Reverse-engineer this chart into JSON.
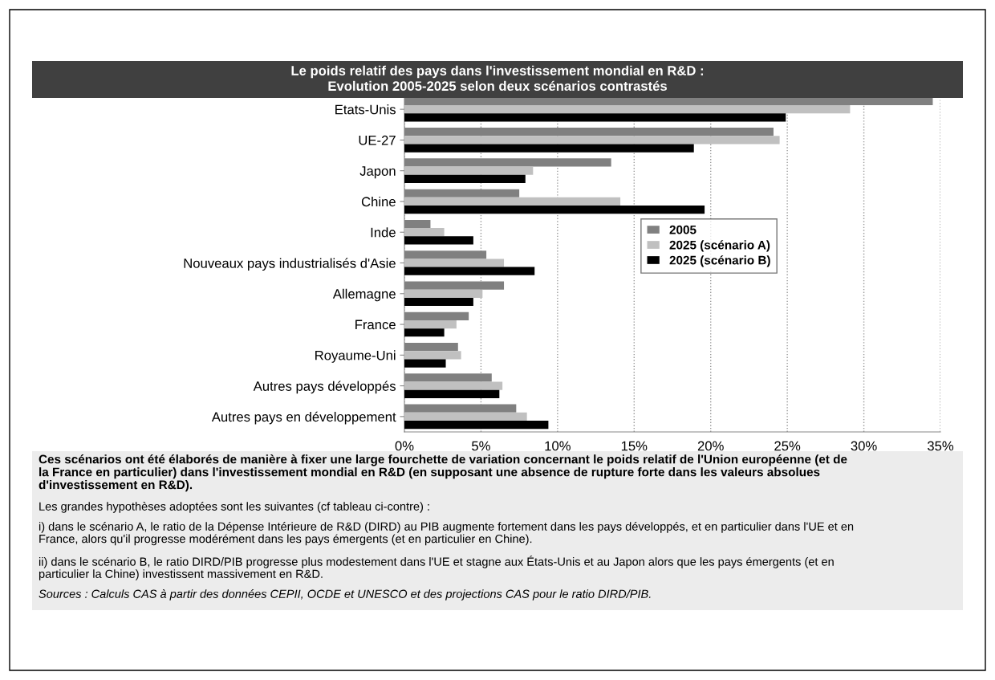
{
  "chart_data": {
    "type": "bar",
    "orientation": "horizontal",
    "title": "Le poids relatif des pays dans l'investissement mondial en R&D :\nEvolution 2005-2025 selon deux scénarios contrastés",
    "categories": [
      "Etats-Unis",
      "UE-27",
      "Japon",
      "Chine",
      "Inde",
      "Nouveaux pays industrialisés d'Asie",
      "Allemagne",
      "France",
      "Royaume-Uni",
      "Autres pays développés",
      "Autres pays en développement"
    ],
    "series": [
      {
        "name": "2005",
        "color": "#808080",
        "values": [
          34.5,
          24.1,
          13.5,
          7.5,
          1.7,
          5.35,
          6.5,
          4.2,
          3.5,
          5.7,
          7.3
        ]
      },
      {
        "name": "2025 (scénario A)",
        "color": "#c0c0c0",
        "values": [
          29.1,
          24.5,
          8.4,
          14.1,
          2.6,
          6.5,
          5.1,
          3.4,
          3.7,
          6.4,
          8.0
        ]
      },
      {
        "name": "2025 (scénario B)",
        "color": "#000000",
        "values": [
          24.9,
          18.9,
          7.9,
          19.6,
          4.5,
          8.5,
          4.5,
          2.6,
          2.7,
          6.2,
          9.4
        ]
      }
    ],
    "xlim": [
      0,
      35
    ],
    "xticks": [
      {
        "value": 0,
        "label": "0%"
      },
      {
        "value": 5,
        "label": "5%"
      },
      {
        "value": 10,
        "label": "10%"
      },
      {
        "value": 15,
        "label": "15%"
      },
      {
        "value": 20,
        "label": "20%"
      },
      {
        "value": 25,
        "label": "25%"
      },
      {
        "value": 30,
        "label": "30%"
      },
      {
        "value": 35,
        "label": "35%"
      }
    ],
    "grid": "x",
    "legend": "right",
    "annotations": [
      "Ces scénarios ont été élaborés de manière à fixer une large fourchette de variation concernant le poids relatif de l'Union européenne (et de la France en particulier) dans l'investissement mondial en R&D (en supposant une absence de rupture forte dans les valeurs absolues d'investissement en R&D).",
      "Les grandes hypothèses adoptées sont les suivantes (cf tableau ci-contre) :",
      "i) dans le scénario A, le ratio de la Dépense Intérieure de R&D (DIRD) au PIB augmente fortement dans les pays développés, et en particulier dans l'UE et en France, alors qu'il progresse modérément dans les pays émergents (et en particulier en Chine).",
      "ii) dans le scénario B, le ratio DIRD/PIB progresse plus modestement dans l'UE et stagne aux États-Unis et au Japon alors que les pays émergents (et en particulier la Chine) investissent massivement en R&D.",
      "Sources : Calculs CAS à partir des données CEPII, OCDE et UNESCO et des projections CAS pour le ratio DIRD/PIB."
    ]
  }
}
